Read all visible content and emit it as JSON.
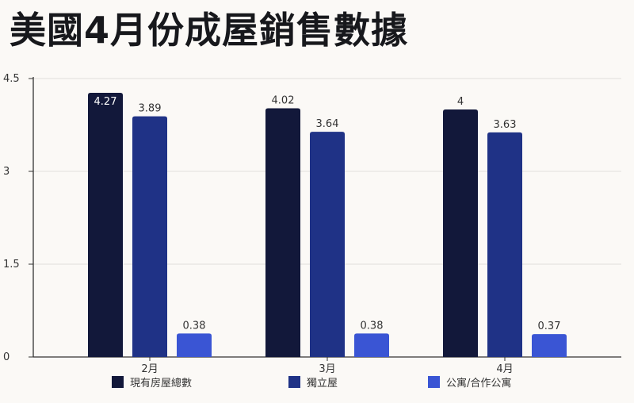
{
  "chart_data": {
    "type": "bar",
    "title": "美國4月份成屋銷售數據",
    "categories": [
      "2月",
      "3月",
      "4月"
    ],
    "series": [
      {
        "name": "現有房屋總數",
        "values": [
          4.27,
          4.02,
          4
        ],
        "color": "#12183a",
        "label_color": "#ffffff"
      },
      {
        "name": "獨立屋",
        "values": [
          3.89,
          3.64,
          3.63
        ],
        "color": "#1f3286",
        "label_color": "#333333"
      },
      {
        "name": "公寓/合作公寓",
        "values": [
          0.38,
          0.38,
          0.37
        ],
        "color": "#3a55d4",
        "label_color": "#333333"
      }
    ],
    "yticks": [
      "0",
      "1.5",
      "3",
      "4.5"
    ],
    "ylim": [
      0,
      4.5
    ],
    "grid": true,
    "legend": "bottom"
  }
}
